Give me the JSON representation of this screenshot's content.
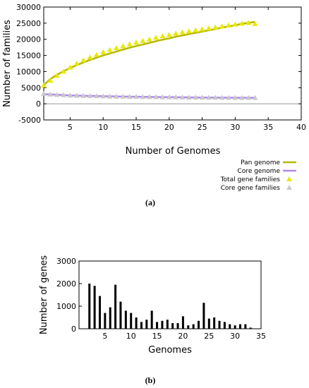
{
  "chart_data": [
    {
      "type": "scatter",
      "panel_label": "(a)",
      "xlabel": "Number of Genomes",
      "ylabel": "Number of families",
      "xlim": [
        1,
        40
      ],
      "ylim": [
        -5000,
        30000
      ],
      "x_ticks": [
        5,
        10,
        15,
        20,
        25,
        30,
        35,
        40
      ],
      "y_ticks": [
        -5000,
        0,
        5000,
        10000,
        15000,
        20000,
        25000,
        30000
      ],
      "legend_position": "bottom-right, outside plot area",
      "series": [
        {
          "name": "Total gene families",
          "kind": "points",
          "marker": "triangle",
          "color": "#e8e800",
          "x": [
            1,
            2,
            3,
            4,
            5,
            6,
            7,
            8,
            9,
            10,
            11,
            12,
            13,
            14,
            15,
            16,
            17,
            18,
            19,
            20,
            21,
            22,
            23,
            24,
            25,
            26,
            27,
            28,
            29,
            30,
            31,
            32,
            33
          ],
          "y": [
            5700,
            7200,
            8700,
            10000,
            11300,
            12500,
            13500,
            14400,
            15200,
            16000,
            16700,
            17300,
            17900,
            18500,
            19000,
            19500,
            20000,
            20500,
            21000,
            21400,
            21800,
            22200,
            22500,
            22800,
            23100,
            23400,
            23700,
            24000,
            24300,
            24600,
            24900,
            25100,
            24800
          ]
        },
        {
          "name": "Core gene families",
          "kind": "points",
          "marker": "triangle",
          "color": "#c8c8c8",
          "x": [
            1,
            2,
            3,
            4,
            5,
            6,
            7,
            8,
            9,
            10,
            11,
            12,
            13,
            14,
            15,
            16,
            17,
            18,
            19,
            20,
            21,
            22,
            23,
            24,
            25,
            26,
            27,
            28,
            29,
            30,
            31,
            32,
            33
          ],
          "y": [
            3100,
            2900,
            2800,
            2700,
            2600,
            2550,
            2500,
            2450,
            2400,
            2350,
            2300,
            2280,
            2250,
            2200,
            2180,
            2150,
            2120,
            2100,
            2080,
            2050,
            2030,
            2000,
            1980,
            1960,
            1950,
            1930,
            1910,
            1900,
            1890,
            1880,
            1870,
            1860,
            1850
          ]
        },
        {
          "name": "Pan genome",
          "kind": "fit-line",
          "color": "#b8b800",
          "x": [
            1,
            2,
            3,
            4,
            5,
            6,
            7,
            8,
            9,
            10,
            11,
            12,
            13,
            14,
            15,
            16,
            17,
            18,
            19,
            20,
            21,
            22,
            23,
            24,
            25,
            26,
            27,
            28,
            29,
            30,
            31,
            32,
            33
          ],
          "y": [
            5800,
            7700,
            9000,
            10100,
            11100,
            12000,
            12800,
            13600,
            14300,
            15000,
            15600,
            16200,
            16800,
            17400,
            17900,
            18400,
            18900,
            19400,
            19900,
            20300,
            20800,
            21200,
            21600,
            22000,
            22400,
            22800,
            23200,
            23600,
            24000,
            24400,
            24800,
            25100,
            25400
          ]
        },
        {
          "name": "Core genome",
          "kind": "fit-line",
          "color": "#b088ee",
          "x": [
            1,
            5,
            10,
            15,
            20,
            25,
            30,
            33
          ],
          "y": [
            3000,
            2600,
            2350,
            2180,
            2050,
            1950,
            1880,
            1850
          ]
        }
      ]
    },
    {
      "type": "bar",
      "panel_label": "(b)",
      "xlabel": "Genomes",
      "ylabel": "Number of genes",
      "xlim": [
        0,
        35
      ],
      "ylim": [
        0,
        3000
      ],
      "x_ticks": [
        5,
        10,
        15,
        20,
        25,
        30,
        35
      ],
      "y_ticks": [
        0,
        1000,
        2000,
        3000
      ],
      "categories": [
        2,
        3,
        4,
        5,
        6,
        7,
        8,
        9,
        10,
        11,
        12,
        13,
        14,
        15,
        16,
        17,
        18,
        19,
        20,
        21,
        22,
        23,
        24,
        25,
        26,
        27,
        28,
        29,
        30,
        31,
        32,
        33
      ],
      "values": [
        2000,
        1900,
        1450,
        700,
        950,
        1950,
        1200,
        800,
        700,
        500,
        300,
        400,
        800,
        300,
        350,
        400,
        250,
        250,
        550,
        150,
        200,
        350,
        1150,
        450,
        500,
        350,
        300,
        200,
        150,
        200,
        200,
        50
      ],
      "color": "#000000"
    }
  ]
}
